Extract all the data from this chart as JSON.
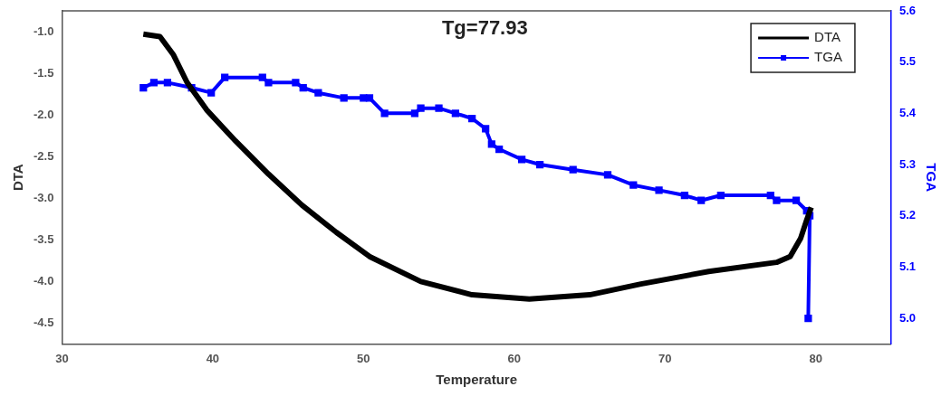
{
  "chart_data": {
    "type": "line",
    "xlabel": "Temperature",
    "ylabel": "DTA",
    "y2label": "TGA",
    "annotations": [
      "Tg=77.93"
    ],
    "xlim": [
      30,
      85
    ],
    "xticks": [
      30,
      40,
      50,
      60,
      70,
      80
    ],
    "ylim": [
      -4.75,
      -0.75
    ],
    "yticks": [
      {
        "value": -4.5,
        "label": "-4.5"
      },
      {
        "value": -4,
        "label": "-4.0"
      },
      {
        "value": -3.5,
        "label": "-3.5"
      },
      {
        "value": -3,
        "label": "-3.0"
      },
      {
        "value": -2.5,
        "label": "-2.5"
      },
      {
        "value": -2,
        "label": "-2.0"
      },
      {
        "value": -1.5,
        "label": "-1.5"
      },
      {
        "value": -1,
        "label": "-1.0"
      }
    ],
    "y2lim": [
      4.95,
      5.6
    ],
    "y2ticks": [
      {
        "value": 5,
        "label": "5.0"
      },
      {
        "value": 5.1,
        "label": "5.1"
      },
      {
        "value": 5.2,
        "label": "5.2"
      },
      {
        "value": 5.3,
        "label": "5.3"
      },
      {
        "value": 5.4,
        "label": "5.4"
      },
      {
        "value": 5.5,
        "label": "5.5"
      },
      {
        "value": 5.6,
        "label": "5.6"
      }
    ],
    "grid": false,
    "legend": "top right",
    "series": [
      {
        "name": "DTA",
        "color": "#000000",
        "marker": "none",
        "x": [
          35.4,
          36.5,
          37.4,
          38.3,
          39.6,
          41.5,
          43.7,
          45.9,
          48.2,
          50.4,
          53.8,
          57.2,
          61.0,
          65.0,
          68.4,
          72.9,
          77.4,
          78.3,
          79.0,
          79.4,
          79.7
        ],
        "values": [
          -1.03,
          -1.06,
          -1.28,
          -1.61,
          -1.94,
          -2.31,
          -2.71,
          -3.08,
          -3.41,
          -3.7,
          -4.0,
          -4.16,
          -4.21,
          -4.16,
          -4.03,
          -3.88,
          -3.77,
          -3.7,
          -3.48,
          -3.26,
          -3.11
        ]
      },
      {
        "name": "TGA",
        "color": "#0000ff",
        "axis": "y2",
        "marker": "square",
        "x": [
          35.4,
          36.1,
          37.0,
          38.6,
          39.9,
          40.8,
          43.3,
          43.7,
          45.5,
          46.0,
          47.0,
          48.7,
          50.0,
          50.4,
          51.4,
          53.4,
          53.8,
          55.0,
          56.1,
          57.2,
          58.1,
          58.5,
          59.0,
          60.5,
          61.7,
          63.9,
          66.2,
          67.9,
          69.6,
          71.3,
          72.4,
          73.7,
          77.0,
          77.4,
          78.7,
          79.4,
          79.6,
          79.5
        ],
        "values": [
          5.45,
          5.46,
          5.46,
          5.45,
          5.44,
          5.47,
          5.47,
          5.46,
          5.46,
          5.45,
          5.44,
          5.43,
          5.43,
          5.43,
          5.4,
          5.4,
          5.41,
          5.41,
          5.4,
          5.39,
          5.37,
          5.34,
          5.33,
          5.31,
          5.3,
          5.29,
          5.28,
          5.26,
          5.25,
          5.24,
          5.23,
          5.24,
          5.24,
          5.23,
          5.23,
          5.21,
          5.2,
          5.0
        ]
      }
    ]
  }
}
